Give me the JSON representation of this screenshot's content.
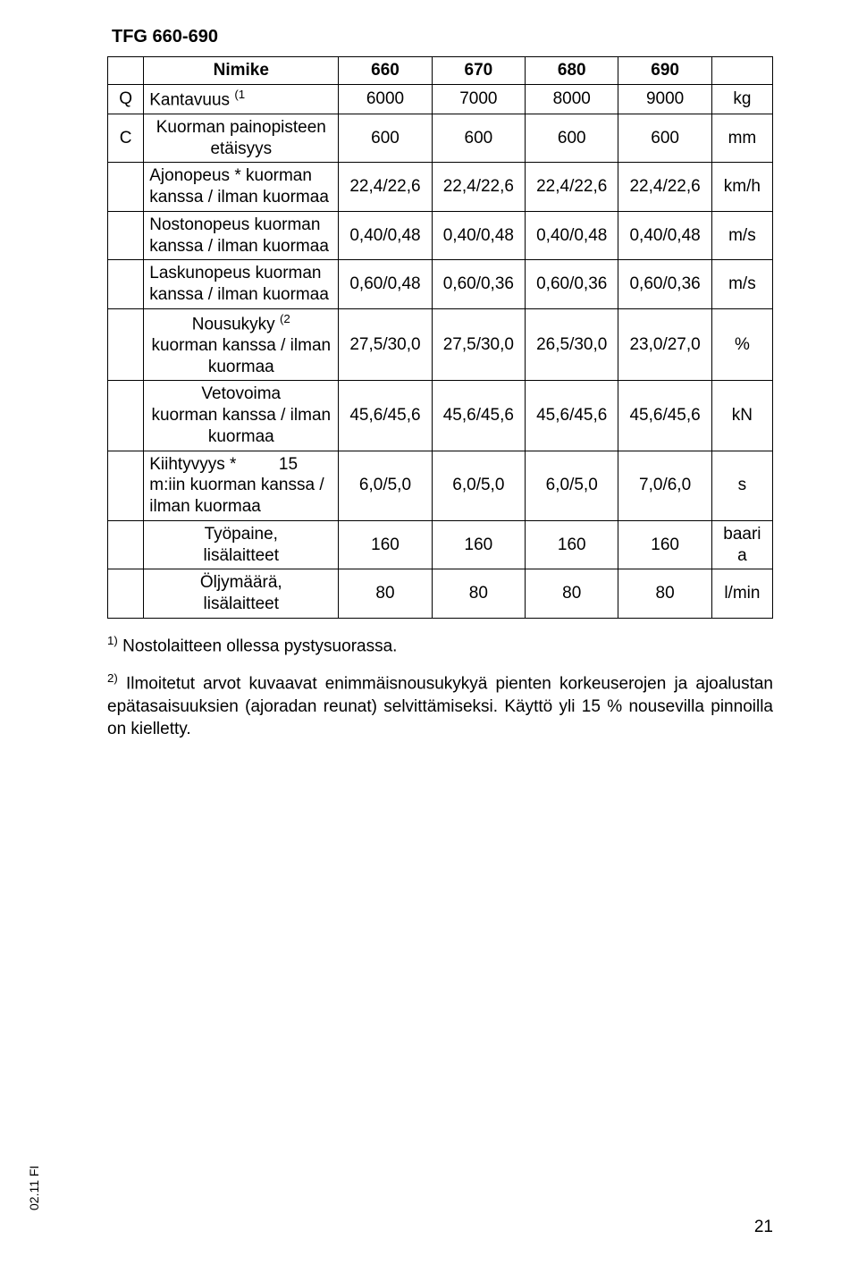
{
  "title": "TFG 660-690",
  "footer_left": "02.11 FI",
  "page_number": "21",
  "table": {
    "header": {
      "nimike_label": "Nimike",
      "cols": [
        "660",
        "670",
        "680",
        "690"
      ]
    },
    "rows": [
      {
        "letter": "Q",
        "label_html": "Kantavuus <sup>(1</sup>",
        "align": "left",
        "vals": [
          "6000",
          "7000",
          "8000",
          "9000"
        ],
        "unit": "kg"
      },
      {
        "letter": "C",
        "label_html": "Kuorman painopisteen etäisyys",
        "align": "center",
        "vals": [
          "600",
          "600",
          "600",
          "600"
        ],
        "unit": "mm"
      },
      {
        "letter": "",
        "label_html": "Ajonopeus * kuorman kanssa / ilman kuormaa",
        "align": "left",
        "vals": [
          "22,4/22,6",
          "22,4/22,6",
          "22,4/22,6",
          "22,4/22,6"
        ],
        "unit": "km/h"
      },
      {
        "letter": "",
        "label_html": "Nostonopeus kuorman kanssa / ilman kuormaa",
        "align": "left",
        "vals": [
          "0,40/0,48",
          "0,40/0,48",
          "0,40/0,48",
          "0,40/0,48"
        ],
        "unit": "m/s"
      },
      {
        "letter": "",
        "label_html": "Laskunopeus kuorman kanssa / ilman kuormaa",
        "align": "left",
        "vals": [
          "0,60/0,48",
          "0,60/0,36",
          "0,60/0,36",
          "0,60/0,36"
        ],
        "unit": "m/s"
      },
      {
        "letter": "",
        "label_html": "Nousukyky <sup>(2</sup><br>kuorman kanssa / ilman kuormaa",
        "align": "center",
        "vals": [
          "27,5/30,0",
          "27,5/30,0",
          "26,5/30,0",
          "23,0/27,0"
        ],
        "unit": "%"
      },
      {
        "letter": "",
        "label_html": "Vetovoima<br>kuorman kanssa / ilman kuormaa",
        "align": "center",
        "vals": [
          "45,6/45,6",
          "45,6/45,6",
          "45,6/45,6",
          "45,6/45,6"
        ],
        "unit": "kN"
      },
      {
        "letter": "",
        "label_html": "Kiihtyvyys&nbsp;* &nbsp;&nbsp;&nbsp;&nbsp;&nbsp;&nbsp;&nbsp; 15 m:iin kuorman kanssa / ilman kuormaa",
        "align": "left",
        "vals": [
          "6,0/5,0",
          "6,0/5,0",
          "6,0/5,0",
          "7,0/6,0"
        ],
        "unit": "s"
      },
      {
        "letter": "",
        "label_html": "Työpaine,<br>lisälaitteet",
        "align": "center",
        "vals": [
          "160",
          "160",
          "160",
          "160"
        ],
        "unit": "baari<br>a"
      },
      {
        "letter": "",
        "label_html": "Öljymäärä,<br>lisälaitteet",
        "align": "center",
        "vals": [
          "80",
          "80",
          "80",
          "80"
        ],
        "unit": "l/min"
      }
    ]
  },
  "footnotes": {
    "f1": "<sup>1)</sup> Nostolaitteen ollessa pystysuorassa.",
    "f2": "<sup>2)</sup> Ilmoitetut arvot kuvaavat enimmäisnousukykyä pienten korkeuserojen ja ajoalustan epätasaisuuksien (ajoradan reunat) selvittämiseksi. Käyttö yli 15 % nousevilla pinnoilla on kielletty."
  }
}
